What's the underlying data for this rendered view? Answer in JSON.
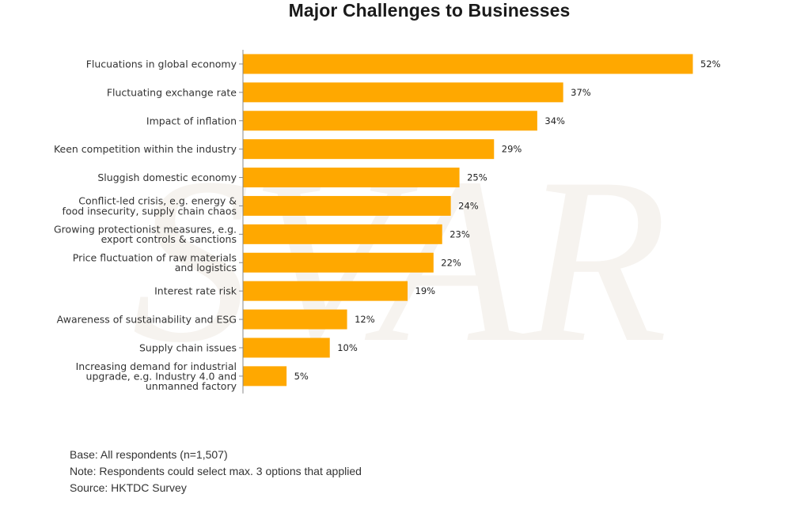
{
  "chart_data": {
    "type": "bar",
    "orientation": "horizontal",
    "title": "Major Challenges to Businesses",
    "bar_color": "#FFA800",
    "value_suffix": "%",
    "categories": [
      "Flucuations in global economy",
      "Fluctuating exchange rate",
      "Impact of inflation",
      "Keen competition within the industry",
      "Sluggish domestic economy",
      "Conflict-led crisis, e.g. energy & food insecurity, supply chain chaos",
      "Growing protectionist measures, e.g. export controls & sanctions",
      "Price fluctuation of raw materials and logistics",
      "Interest rate risk",
      "Awareness of sustainability and ESG",
      "Supply chain issues",
      "Increasing demand for industrial upgrade, e.g. Industry 4.0 and unmanned factory"
    ],
    "category_lines": [
      [
        "Flucuations in global economy"
      ],
      [
        "Fluctuating exchange rate"
      ],
      [
        "Impact of inflation"
      ],
      [
        "Keen competition within the industry"
      ],
      [
        "Sluggish domestic economy"
      ],
      [
        "Conflict-led crisis, e.g. energy &",
        "food insecurity, supply chain chaos"
      ],
      [
        "Growing protectionist measures, e.g.",
        "export controls & sanctions"
      ],
      [
        "Price fluctuation of raw materials",
        "and logistics"
      ],
      [
        "Interest rate risk"
      ],
      [
        "Awareness of sustainability and ESG"
      ],
      [
        "Supply chain issues"
      ],
      [
        "Increasing demand for industrial",
        "upgrade, e.g. Industry 4.0 and",
        "unmanned factory"
      ]
    ],
    "values": [
      52,
      37,
      34,
      29,
      25,
      24,
      23,
      22,
      19,
      12,
      10,
      5
    ],
    "xlim": [
      0,
      52
    ],
    "grid": false
  },
  "watermark_text": "SVAR",
  "footnotes": {
    "base": "Base: All respondents (n=1,507)",
    "note": "Note: Respondents could select max. 3 options that applied",
    "source": "Source: HKTDC Survey"
  }
}
